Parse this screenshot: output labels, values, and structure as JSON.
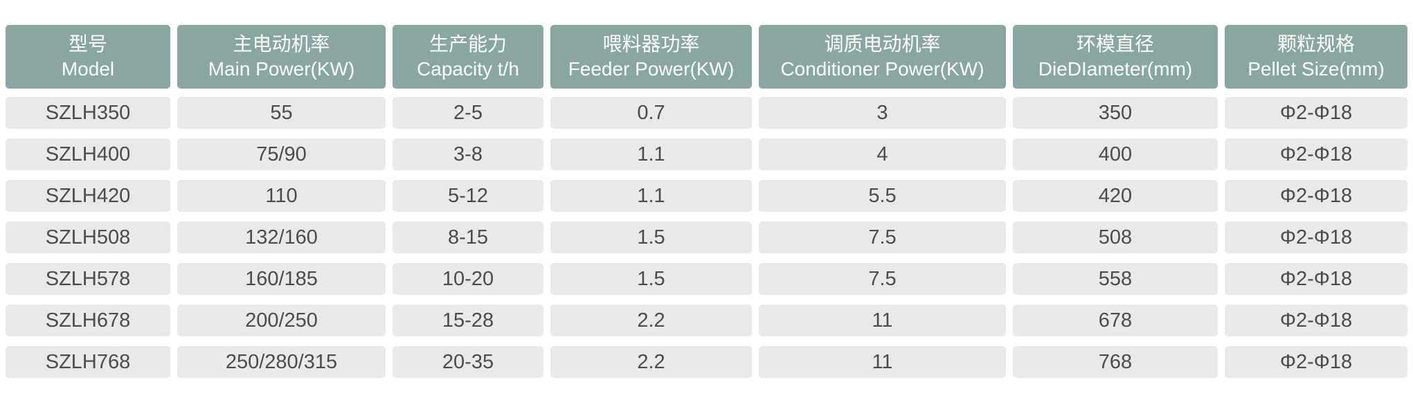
{
  "colors": {
    "header_bg": "#89a7a1",
    "header_text": "#ffffff",
    "row_bg": "#e9e9eb",
    "row_text": "#4b4b4d",
    "page_bg": "#ffffff"
  },
  "chart_data": {
    "type": "table",
    "title": "",
    "columns": [
      {
        "zh": "型号",
        "en": "Model"
      },
      {
        "zh": "主电动机率",
        "en": "Main Power(KW)"
      },
      {
        "zh": "生产能力",
        "en": "Capacity t/h"
      },
      {
        "zh": "喂料器功率",
        "en": "Feeder Power(KW)"
      },
      {
        "zh": "调质电动机率",
        "en": "Conditioner Power(KW)"
      },
      {
        "zh": "环模直径",
        "en": "DieDIameter(mm)"
      },
      {
        "zh": "颗粒规格",
        "en": "Pellet Size(mm)"
      }
    ],
    "rows": [
      [
        "SZLH350",
        "55",
        "2-5",
        "0.7",
        "3",
        "350",
        "Φ2-Φ18"
      ],
      [
        "SZLH400",
        "75/90",
        "3-8",
        "1.1",
        "4",
        "400",
        "Φ2-Φ18"
      ],
      [
        "SZLH420",
        "110",
        "5-12",
        "1.1",
        "5.5",
        "420",
        "Φ2-Φ18"
      ],
      [
        "SZLH508",
        "132/160",
        "8-15",
        "1.5",
        "7.5",
        "508",
        "Φ2-Φ18"
      ],
      [
        "SZLH578",
        "160/185",
        "10-20",
        "1.5",
        "7.5",
        "558",
        "Φ2-Φ18"
      ],
      [
        "SZLH678",
        "200/250",
        "15-28",
        "2.2",
        "11",
        "678",
        "Φ2-Φ18"
      ],
      [
        "SZLH768",
        "250/280/315",
        "20-35",
        "2.2",
        "11",
        "768",
        "Φ2-Φ18"
      ]
    ]
  }
}
